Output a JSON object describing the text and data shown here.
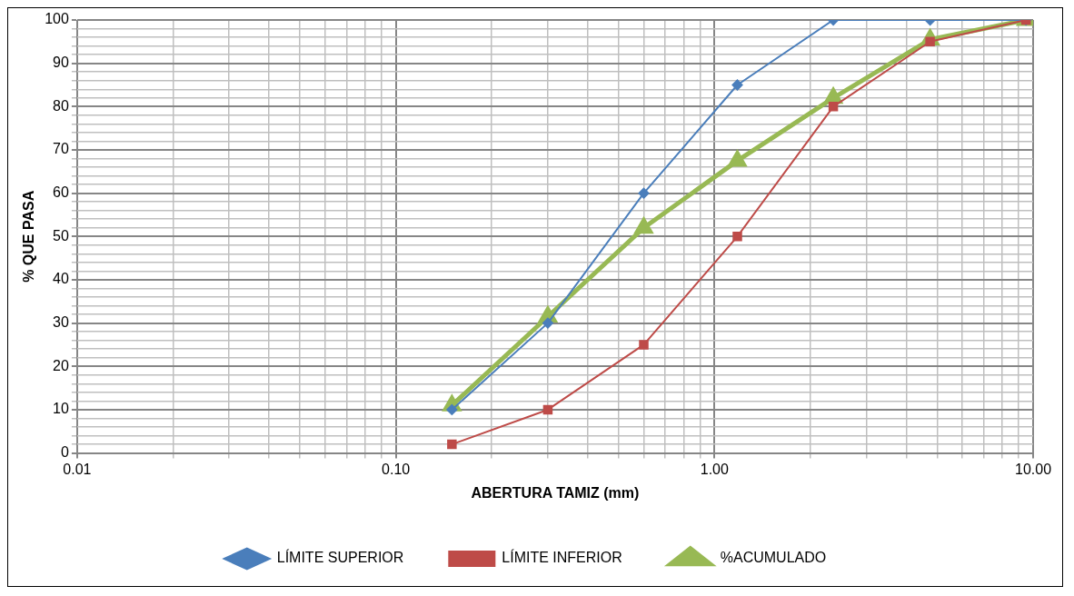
{
  "chart_data": {
    "type": "line",
    "xlabel": "ABERTURA TAMIZ (mm)",
    "ylabel": "% QUE PASA",
    "x": [
      0.15,
      0.3,
      0.6,
      1.18,
      2.36,
      4.75,
      9.5
    ],
    "series": [
      {
        "name": "LÍMITE SUPERIOR",
        "color": "#4a7ebb",
        "marker": "diamond",
        "values": [
          10,
          30,
          60,
          85,
          100,
          100,
          100
        ]
      },
      {
        "name": "LÍMITE INFERIOR",
        "color": "#be4b48",
        "marker": "square",
        "values": [
          2,
          10,
          25,
          50,
          80,
          95,
          100
        ]
      },
      {
        "name": "%ACUMULADO",
        "color": "#98b954",
        "marker": "triangle",
        "values": [
          11,
          31.5,
          52,
          67.5,
          82,
          95.5,
          100
        ]
      }
    ],
    "log": "x",
    "xlim": [
      0.01,
      10
    ],
    "xticks": [
      {
        "value": 0.01,
        "label": "0.01"
      },
      {
        "value": 0.02,
        "label": null
      },
      {
        "value": 0.03,
        "label": null
      },
      {
        "value": 0.04,
        "label": null
      },
      {
        "value": 0.05,
        "label": null
      },
      {
        "value": 0.06,
        "label": null
      },
      {
        "value": 0.07,
        "label": null
      },
      {
        "value": 0.08,
        "label": null
      },
      {
        "value": 0.09,
        "label": null
      },
      {
        "value": 0.1,
        "label": "0.10"
      },
      {
        "value": 0.2,
        "label": null
      },
      {
        "value": 0.3,
        "label": null
      },
      {
        "value": 0.4,
        "label": null
      },
      {
        "value": 0.5,
        "label": null
      },
      {
        "value": 0.6,
        "label": null
      },
      {
        "value": 0.7,
        "label": null
      },
      {
        "value": 0.8,
        "label": null
      },
      {
        "value": 0.9,
        "label": null
      },
      {
        "value": 1,
        "label": "1.00"
      },
      {
        "value": 2,
        "label": null
      },
      {
        "value": 3,
        "label": null
      },
      {
        "value": 4,
        "label": null
      },
      {
        "value": 5,
        "label": null
      },
      {
        "value": 6,
        "label": null
      },
      {
        "value": 7,
        "label": null
      },
      {
        "value": 8,
        "label": null
      },
      {
        "value": 9,
        "label": null
      },
      {
        "value": 10,
        "label": "10.00"
      }
    ],
    "ylim": [
      0,
      100
    ],
    "yticks": [
      0,
      {
        "value": 2,
        "label": null
      },
      {
        "value": 4,
        "label": null
      },
      {
        "value": 6,
        "label": null
      },
      {
        "value": 8,
        "label": null
      },
      10,
      {
        "value": 12,
        "label": null
      },
      {
        "value": 14,
        "label": null
      },
      {
        "value": 16,
        "label": null
      },
      {
        "value": 18,
        "label": null
      },
      20,
      {
        "value": 22,
        "label": null
      },
      {
        "value": 24,
        "label": null
      },
      {
        "value": 26,
        "label": null
      },
      {
        "value": 28,
        "label": null
      },
      30,
      {
        "value": 32,
        "label": null
      },
      {
        "value": 34,
        "label": null
      },
      {
        "value": 36,
        "label": null
      },
      {
        "value": 38,
        "label": null
      },
      40,
      {
        "value": 42,
        "label": null
      },
      {
        "value": 44,
        "label": null
      },
      {
        "value": 46,
        "label": null
      },
      {
        "value": 48,
        "label": null
      },
      50,
      {
        "value": 52,
        "label": null
      },
      {
        "value": 54,
        "label": null
      },
      {
        "value": 56,
        "label": null
      },
      {
        "value": 58,
        "label": null
      },
      60,
      {
        "value": 62,
        "label": null
      },
      {
        "value": 64,
        "label": null
      },
      {
        "value": 66,
        "label": null
      },
      {
        "value": 68,
        "label": null
      },
      70,
      {
        "value": 72,
        "label": null
      },
      {
        "value": 74,
        "label": null
      },
      {
        "value": 76,
        "label": null
      },
      {
        "value": 78,
        "label": null
      },
      80,
      {
        "value": 82,
        "label": null
      },
      {
        "value": 84,
        "label": null
      },
      {
        "value": 86,
        "label": null
      },
      {
        "value": 88,
        "label": null
      },
      90,
      {
        "value": 92,
        "label": null
      },
      {
        "value": 94,
        "label": null
      },
      {
        "value": 96,
        "label": null
      },
      {
        "value": 98,
        "label": null
      },
      100
    ],
    "grid": true,
    "legend": "bottom",
    "line_style": "solid"
  }
}
